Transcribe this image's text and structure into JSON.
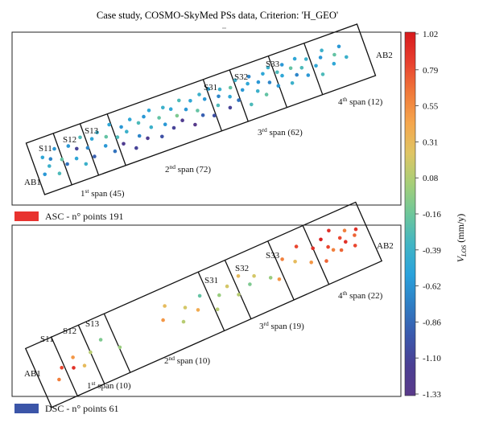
{
  "title": "Case study, COSMO-SkyMed PSs data, Criterion: 'H_GEO'",
  "colorbar": {
    "label": "V",
    "label_sub": "LOS",
    "label_unit": " (mm/y)",
    "ticks": [
      "1.02",
      "0.79",
      "0.55",
      "0.31",
      "0.08",
      "-0.16",
      "-0.39",
      "-0.62",
      "-0.86",
      "-1.10",
      "-1.33"
    ],
    "range": [
      -1.33,
      1.02
    ],
    "colors": [
      "#d7191c",
      "#e8402f",
      "#f07a3a",
      "#f5a64d",
      "#dfc564",
      "#a6cf78",
      "#6ec79a",
      "#42b5c4",
      "#2aa2dc",
      "#2f7ec4",
      "#3a59ad",
      "#4b3f93",
      "#5a3a8a"
    ]
  },
  "panels": [
    {
      "legend_color": "#e8332f",
      "legend_text": "ASC - n° points 191",
      "abutment_start": "AB1",
      "abutment_end": "AB2",
      "pier_labels": [
        "S11",
        "S12",
        "S13",
        "S31",
        "S32",
        "S33"
      ],
      "spans": [
        {
          "name": "1",
          "sup": "st",
          "rest": " span (45)"
        },
        {
          "name": "2",
          "sup": "nd",
          "rest": " span (72)"
        },
        {
          "name": "3",
          "sup": "rd",
          "rest": " span (62)"
        },
        {
          "name": "4",
          "sup": "th",
          "rest": " span (12)"
        }
      ]
    },
    {
      "legend_color": "#3b55a8",
      "legend_text": "DSC - n° points 61",
      "abutment_start": "AB1",
      "abutment_end": "AB2",
      "pier_labels": [
        "S11",
        "S12",
        "S13",
        "S31",
        "S32",
        "S33"
      ],
      "spans": [
        {
          "name": "1",
          "sup": "st",
          "rest": " span (10)"
        },
        {
          "name": "2",
          "sup": "nd",
          "rest": " span (10)"
        },
        {
          "name": "3",
          "sup": "rd",
          "rest": " span (19)"
        },
        {
          "name": "4",
          "sup": "th",
          "rest": " span (22)"
        }
      ]
    }
  ],
  "chart_data": {
    "type": "scatter",
    "title": "Case study, COSMO-SkyMed PSs data, Criterion: 'H_GEO'",
    "colorbar_label": "V_LOS (mm/y)",
    "colorbar_range": [
      -1.33,
      1.02
    ],
    "series": [
      {
        "name": "ASC - n° points 191",
        "points": [
          [
            0.02,
            0.3,
            -0.6
          ],
          [
            0.03,
            0.7,
            -0.5
          ],
          [
            0.04,
            0.45,
            -0.4
          ],
          [
            0.05,
            0.6,
            -0.7
          ],
          [
            0.06,
            0.2,
            -0.3
          ],
          [
            0.07,
            0.8,
            -0.6
          ],
          [
            0.08,
            0.5,
            -0.2
          ],
          [
            0.09,
            0.35,
            -0.8
          ],
          [
            0.11,
            0.75,
            -0.6
          ],
          [
            0.12,
            0.4,
            -0.5
          ],
          [
            0.13,
            0.62,
            -1.1
          ],
          [
            0.14,
            0.2,
            -0.4
          ],
          [
            0.15,
            0.85,
            -0.3
          ],
          [
            0.16,
            0.55,
            -0.7
          ],
          [
            0.17,
            0.3,
            -0.9
          ],
          [
            0.18,
            0.72,
            -0.5
          ],
          [
            0.2,
            0.82,
            -0.4
          ],
          [
            0.21,
            0.45,
            -0.6
          ],
          [
            0.22,
            0.65,
            -0.2
          ],
          [
            0.23,
            0.25,
            -0.8
          ],
          [
            0.24,
            0.9,
            -0.5
          ],
          [
            0.25,
            0.55,
            -0.3
          ],
          [
            0.26,
            0.35,
            -1.2
          ],
          [
            0.27,
            0.75,
            -0.6
          ],
          [
            0.28,
            0.6,
            -0.4
          ],
          [
            0.29,
            0.15,
            -1.1
          ],
          [
            0.3,
            0.85,
            -0.5
          ],
          [
            0.31,
            0.4,
            -0.7
          ],
          [
            0.32,
            0.7,
            -0.3
          ],
          [
            0.33,
            0.28,
            -1.2
          ],
          [
            0.34,
            0.8,
            -0.6
          ],
          [
            0.35,
            0.5,
            -0.4
          ],
          [
            0.36,
            0.9,
            -0.5
          ],
          [
            0.37,
            0.2,
            -1.0
          ],
          [
            0.38,
            0.65,
            -0.2
          ],
          [
            0.39,
            0.45,
            -0.6
          ],
          [
            0.4,
            0.85,
            -0.4
          ],
          [
            0.41,
            0.3,
            -1.1
          ],
          [
            0.42,
            0.75,
            -0.5
          ],
          [
            0.43,
            0.55,
            -0.1
          ],
          [
            0.44,
            0.4,
            -1.2
          ],
          [
            0.45,
            0.88,
            -0.3
          ],
          [
            0.46,
            0.62,
            -0.6
          ],
          [
            0.47,
            0.2,
            -1.3
          ],
          [
            0.48,
            0.78,
            -0.5
          ],
          [
            0.49,
            0.5,
            -0.2
          ],
          [
            0.5,
            0.35,
            -0.9
          ],
          [
            0.51,
            0.85,
            -0.4
          ],
          [
            0.52,
            0.7,
            -0.6
          ],
          [
            0.53,
            0.25,
            -1.0
          ],
          [
            0.54,
            0.9,
            -0.5
          ],
          [
            0.55,
            0.45,
            -0.3
          ],
          [
            0.56,
            0.65,
            -0.7
          ],
          [
            0.57,
            0.8,
            -0.4
          ],
          [
            0.58,
            0.3,
            -1.1
          ],
          [
            0.59,
            0.55,
            -0.5
          ],
          [
            0.6,
            0.75,
            -0.2
          ],
          [
            0.61,
            0.4,
            -0.8
          ],
          [
            0.62,
            0.88,
            -0.4
          ],
          [
            0.63,
            0.6,
            -0.6
          ],
          [
            0.64,
            0.2,
            -0.3
          ],
          [
            0.65,
            0.7,
            -0.5
          ],
          [
            0.66,
            0.85,
            -0.7
          ],
          [
            0.67,
            0.45,
            -0.4
          ],
          [
            0.68,
            0.65,
            -0.6
          ],
          [
            0.69,
            0.3,
            -0.2
          ],
          [
            0.7,
            0.8,
            -0.5
          ],
          [
            0.71,
            0.55,
            -0.7
          ],
          [
            0.72,
            0.9,
            -0.4
          ],
          [
            0.73,
            0.4,
            -0.6
          ],
          [
            0.74,
            0.72,
            -0.3
          ],
          [
            0.75,
            0.6,
            -0.5
          ],
          [
            0.76,
            0.85,
            -0.6
          ],
          [
            0.77,
            0.35,
            -0.4
          ],
          [
            0.78,
            0.7,
            -0.2
          ],
          [
            0.79,
            0.5,
            -0.7
          ],
          [
            0.8,
            0.88,
            -0.5
          ],
          [
            0.81,
            0.62,
            -0.3
          ],
          [
            0.82,
            0.4,
            -0.6
          ],
          [
            0.83,
            0.78,
            -0.4
          ],
          [
            0.85,
            0.55,
            -0.5
          ],
          [
            0.86,
            0.3,
            -0.3
          ],
          [
            0.87,
            0.7,
            -0.6
          ],
          [
            0.88,
            0.85,
            -0.4
          ],
          [
            0.9,
            0.45,
            -0.5
          ],
          [
            0.91,
            0.65,
            -0.2
          ],
          [
            0.93,
            0.8,
            -0.6
          ],
          [
            0.94,
            0.5,
            -0.4
          ]
        ]
      },
      {
        "name": "DSC - n° points 61",
        "points": [
          [
            0.05,
            0.3,
            0.6
          ],
          [
            0.07,
            0.5,
            0.8
          ],
          [
            0.1,
            0.4,
            0.9
          ],
          [
            0.11,
            0.6,
            0.5
          ],
          [
            0.13,
            0.35,
            0.3
          ],
          [
            0.16,
            0.55,
            0.1
          ],
          [
            0.2,
            0.7,
            -0.1
          ],
          [
            0.24,
            0.4,
            0.0
          ],
          [
            0.38,
            0.55,
            0.5
          ],
          [
            0.4,
            0.8,
            0.3
          ],
          [
            0.43,
            0.35,
            0.1
          ],
          [
            0.45,
            0.6,
            0.2
          ],
          [
            0.48,
            0.45,
            0.4
          ],
          [
            0.5,
            0.7,
            -0.2
          ],
          [
            0.53,
            0.3,
            0.1
          ],
          [
            0.55,
            0.55,
            0.0
          ],
          [
            0.58,
            0.65,
            0.2
          ],
          [
            0.6,
            0.4,
            0.1
          ],
          [
            0.62,
            0.75,
            0.3
          ],
          [
            0.64,
            0.5,
            -0.1
          ],
          [
            0.66,
            0.62,
            0.2
          ],
          [
            0.7,
            0.45,
            0.0
          ],
          [
            0.72,
            0.35,
            0.5
          ],
          [
            0.75,
            0.7,
            0.6
          ],
          [
            0.78,
            0.55,
            0.3
          ],
          [
            0.8,
            0.82,
            0.8
          ],
          [
            0.82,
            0.4,
            0.5
          ],
          [
            0.84,
            0.65,
            0.9
          ],
          [
            0.86,
            0.3,
            0.7
          ],
          [
            0.87,
            0.75,
            1.0
          ],
          [
            0.88,
            0.55,
            0.8
          ],
          [
            0.89,
            0.45,
            0.6
          ],
          [
            0.9,
            0.85,
            0.9
          ],
          [
            0.91,
            0.38,
            0.7
          ],
          [
            0.92,
            0.62,
            0.8
          ],
          [
            0.93,
            0.5,
            0.9
          ],
          [
            0.94,
            0.72,
            0.6
          ],
          [
            0.95,
            0.35,
            0.8
          ],
          [
            0.96,
            0.55,
            0.7
          ],
          [
            0.97,
            0.65,
            0.9
          ]
        ]
      }
    ]
  }
}
